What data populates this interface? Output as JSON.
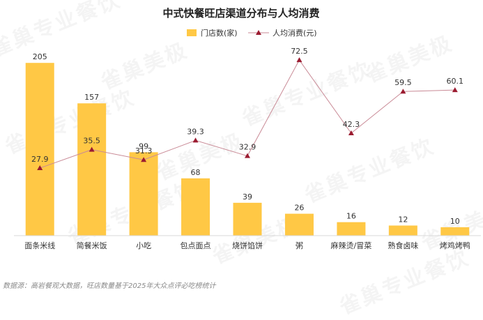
{
  "chart_data": {
    "type": "bar",
    "title": "中式快餐旺店渠道分布与人均消费",
    "categories": [
      "面条米线",
      "简餐米饭",
      "小吃",
      "包点面点",
      "烧饼馅饼",
      "粥",
      "麻辣烫/冒菜",
      "熟食卤味",
      "烤鸡烤鸭"
    ],
    "series": [
      {
        "name": "门店数(家)",
        "type": "bar",
        "color": "#FFC845",
        "values": [
          205,
          157,
          99,
          68,
          39,
          26,
          16,
          12,
          10
        ]
      },
      {
        "name": "人均消费(元)",
        "type": "line",
        "color": "#9B1B30",
        "line_color": "#C98A96",
        "values": [
          27.9,
          35.5,
          31.3,
          39.3,
          32.9,
          72.5,
          42.3,
          59.5,
          60.1
        ]
      }
    ],
    "bar_ylim": [
      0,
      230
    ],
    "line_ylim": [
      0,
      80
    ],
    "legend_position": "top-center",
    "grid": false
  },
  "source": "数据源：高岩餐观大数据，旺店数量基于2025年大众点评必吃榜统计",
  "watermarks": [
    "雀巢专业餐饮",
    "雀巢美极",
    "雀巢专业餐饮",
    "雀巢美极",
    "雀巢专业餐饮",
    "雀巢美极",
    "雀巢专业餐饮",
    "雀巢美极",
    "雀巢专业餐饮",
    "雀巢美极",
    "雀巢专业餐饮"
  ]
}
